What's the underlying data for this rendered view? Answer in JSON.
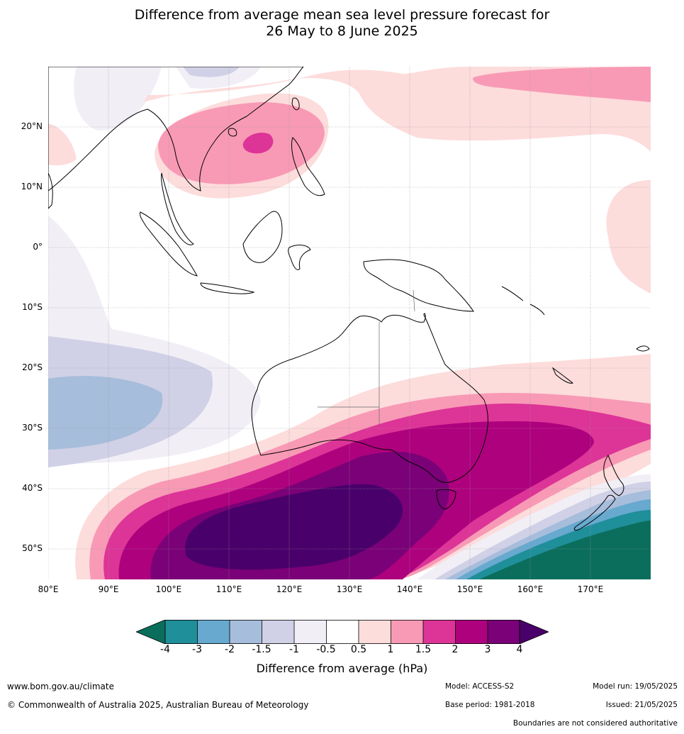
{
  "title_line1": "Difference from average mean sea level pressure forecast for",
  "title_line2": "26 May to 8 June 2025",
  "map": {
    "lat_labels": [
      "20°N",
      "10°N",
      "0°",
      "10°S",
      "20°S",
      "30°S",
      "40°S",
      "50°S"
    ],
    "lon_labels": [
      "80°E",
      "90°E",
      "100°E",
      "110°E",
      "120°E",
      "130°E",
      "140°E",
      "150°E",
      "160°E",
      "170°E"
    ]
  },
  "colorbar": {
    "ticks": [
      "-4",
      "-3",
      "-2",
      "-1.5",
      "-1",
      "-0.5",
      "0.5",
      "1",
      "1.5",
      "2",
      "3",
      "4"
    ],
    "colors": [
      "#0b6e5c",
      "#1f8f9a",
      "#67a9cf",
      "#a6bddb",
      "#d0d1e6",
      "#f1eef6",
      "#ffffff",
      "#fddcdc",
      "#f89ab5",
      "#dd3497",
      "#ae017e",
      "#7a0177",
      "#49006a"
    ],
    "label": "Difference from average (hPa)"
  },
  "footer": {
    "website": "www.bom.gov.au/climate",
    "copyright": "© Commonwealth of Australia 2025, Australian Bureau of Meteorology",
    "model": "Model: ACCESS-S2",
    "base_period": "Base period: 1981-2018",
    "model_run": "Model run: 19/05/2025",
    "issued": "Issued: 21/05/2025",
    "disclaimer": "Boundaries are not considered authoritative"
  }
}
